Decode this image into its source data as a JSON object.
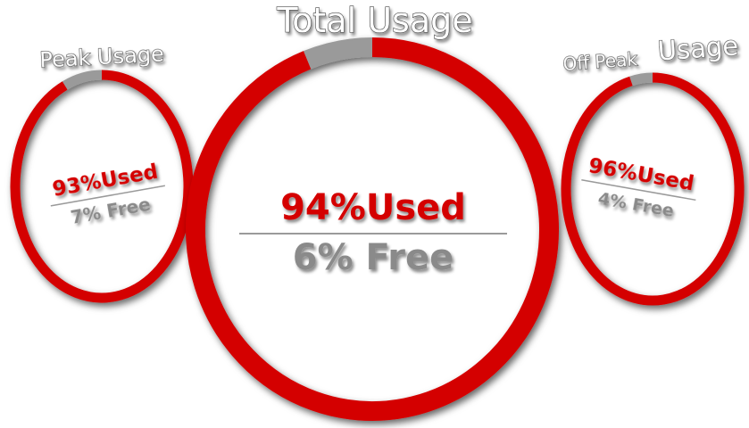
{
  "chart_data": [
    {
      "type": "pie",
      "title": "Peak Usage",
      "used_percent": 93,
      "free_percent": 7,
      "used_label": "93%Used",
      "free_label": "7% Free"
    },
    {
      "type": "pie",
      "title": "Total Usage",
      "used_percent": 94,
      "free_percent": 6,
      "used_label": "94%Used",
      "free_label": "6% Free"
    },
    {
      "type": "pie",
      "title": "Off Peak Usage",
      "title_parts": [
        "Off Peak",
        "Usage"
      ],
      "used_percent": 96,
      "free_percent": 4,
      "used_label": "96%Used",
      "free_label": "4% Free"
    }
  ],
  "colors": {
    "used": "#d40000",
    "free": "#9a9a9a",
    "divider": "#9a9a9a"
  }
}
